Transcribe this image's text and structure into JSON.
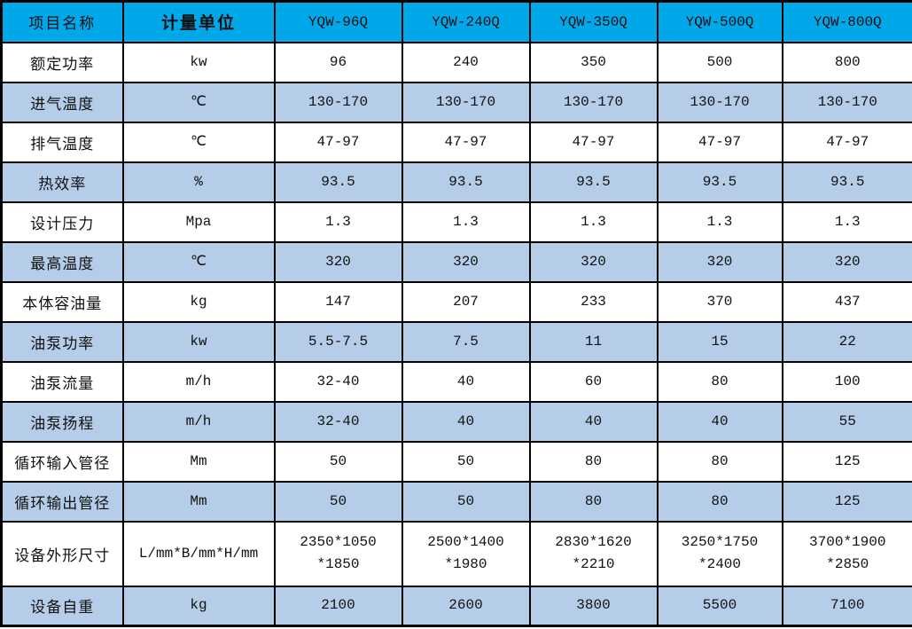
{
  "table": {
    "columns": [
      {
        "label": "项目名称"
      },
      {
        "label": "计量单位"
      },
      {
        "label": "YQW-96Q"
      },
      {
        "label": "YQW-240Q"
      },
      {
        "label": "YQW-350Q"
      },
      {
        "label": "YQW-500Q"
      },
      {
        "label": "YQW-800Q"
      }
    ],
    "rows": [
      {
        "name": "额定功率",
        "unit": "kw",
        "values": [
          "96",
          "240",
          "350",
          "500",
          "800"
        ]
      },
      {
        "name": "进气温度",
        "unit": "℃",
        "values": [
          "130-170",
          "130-170",
          "130-170",
          "130-170",
          "130-170"
        ]
      },
      {
        "name": "排气温度",
        "unit": "℃",
        "values": [
          "47-97",
          "47-97",
          "47-97",
          "47-97",
          "47-97"
        ]
      },
      {
        "name": "热效率",
        "unit": "%",
        "values": [
          "93.5",
          "93.5",
          "93.5",
          "93.5",
          "93.5"
        ]
      },
      {
        "name": "设计压力",
        "unit": "Mpa",
        "values": [
          "1.3",
          "1.3",
          "1.3",
          "1.3",
          "1.3"
        ]
      },
      {
        "name": "最高温度",
        "unit": "℃",
        "values": [
          "320",
          "320",
          "320",
          "320",
          "320"
        ]
      },
      {
        "name": "本体容油量",
        "unit": "kg",
        "values": [
          "147",
          "207",
          "233",
          "370",
          "437"
        ]
      },
      {
        "name": "油泵功率",
        "unit": "kw",
        "values": [
          "5.5-7.5",
          "7.5",
          "11",
          "15",
          "22"
        ]
      },
      {
        "name": "油泵流量",
        "unit": "m/h",
        "values": [
          "32-40",
          "40",
          "60",
          "80",
          "100"
        ]
      },
      {
        "name": "油泵扬程",
        "unit": "m/h",
        "values": [
          "32-40",
          "40",
          "40",
          "40",
          "55"
        ]
      },
      {
        "name": "循环输入管径",
        "unit": "Mm",
        "values": [
          "50",
          "50",
          "80",
          "80",
          "125"
        ]
      },
      {
        "name": "循环输出管径",
        "unit": "Mm",
        "values": [
          "50",
          "50",
          "80",
          "80",
          "125"
        ]
      },
      {
        "name": "设备外形尺寸",
        "unit": "L/mm*B/mm*H/mm",
        "values": [
          "2350*1050\n*1850",
          "2500*1400\n*1980",
          "2830*1620\n*2210",
          "3250*1750\n*2400",
          "3700*1900\n*2850"
        ],
        "tall": true
      },
      {
        "name": "设备自重",
        "unit": "kg",
        "values": [
          "2100",
          "2600",
          "3800",
          "5500",
          "7100"
        ]
      }
    ]
  },
  "colors": {
    "header_bg": "#00A7E9",
    "row_bg": "#FFFFFF",
    "row_alt_bg": "#B5CDE9",
    "border": "#000000",
    "text": "#111111"
  }
}
